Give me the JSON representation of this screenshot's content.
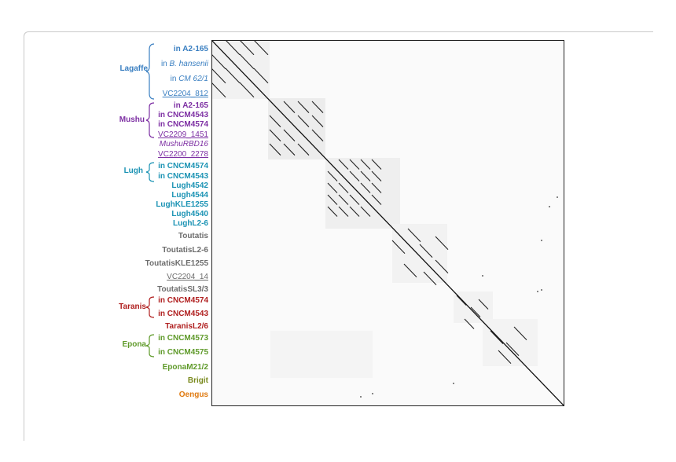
{
  "colors": {
    "lagaffe": "#3a7fc1",
    "mushu": "#7d2fa3",
    "lugh": "#1b93b4",
    "toutatis": "#6d6d6d",
    "taranis": "#b02020",
    "epona": "#5f9a2a",
    "brigit": "#7a8a1e",
    "oengus": "#e07a10",
    "dot": "#000000"
  },
  "groups": {
    "lagaffe": "Lagaffe",
    "mushu": "Mushu",
    "lugh": "Lugh",
    "taranis": "Taranis",
    "epona": "Epona"
  },
  "labels": {
    "lag_1": "in A2-165",
    "lag_2_pre": "in ",
    "lag_2_it": "B. hansenii",
    "lag_3_pre": "in ",
    "lag_3_it": "CM 62/1",
    "lag_4": "VC2204_812",
    "mus_1": "in A2-165",
    "mus_2": "in CNCM4543",
    "mus_3": "in CNCM4574",
    "mus_4": "VC2209_1451",
    "mus_5": "MushuRBD16",
    "mus_6": "VC2200_2278",
    "lug_1": "in CNCM4574",
    "lug_2": "in CNCM4543",
    "lug_3": "Lugh4542",
    "lug_4": "Lugh4544",
    "lug_5": "LughKLE1255",
    "lug_6": "Lugh4540",
    "lug_7": "LughL2-6",
    "tou_1": "Toutatis",
    "tou_2": "ToutatisL2-6",
    "tou_3": "ToutatisKLE1255",
    "tou_4": "VC2204_14",
    "tou_5": "ToutatisSL3/3",
    "tar_1": "in CNCM4574",
    "tar_2": "in CNCM4543",
    "tar_3": "TaranisL2/6",
    "epo_1": "in CNCM4573",
    "epo_2": "in CNCM4575",
    "epo_3": "EponaM21/2",
    "bri_1": "Brigit",
    "oen_1": "Oengus"
  }
}
